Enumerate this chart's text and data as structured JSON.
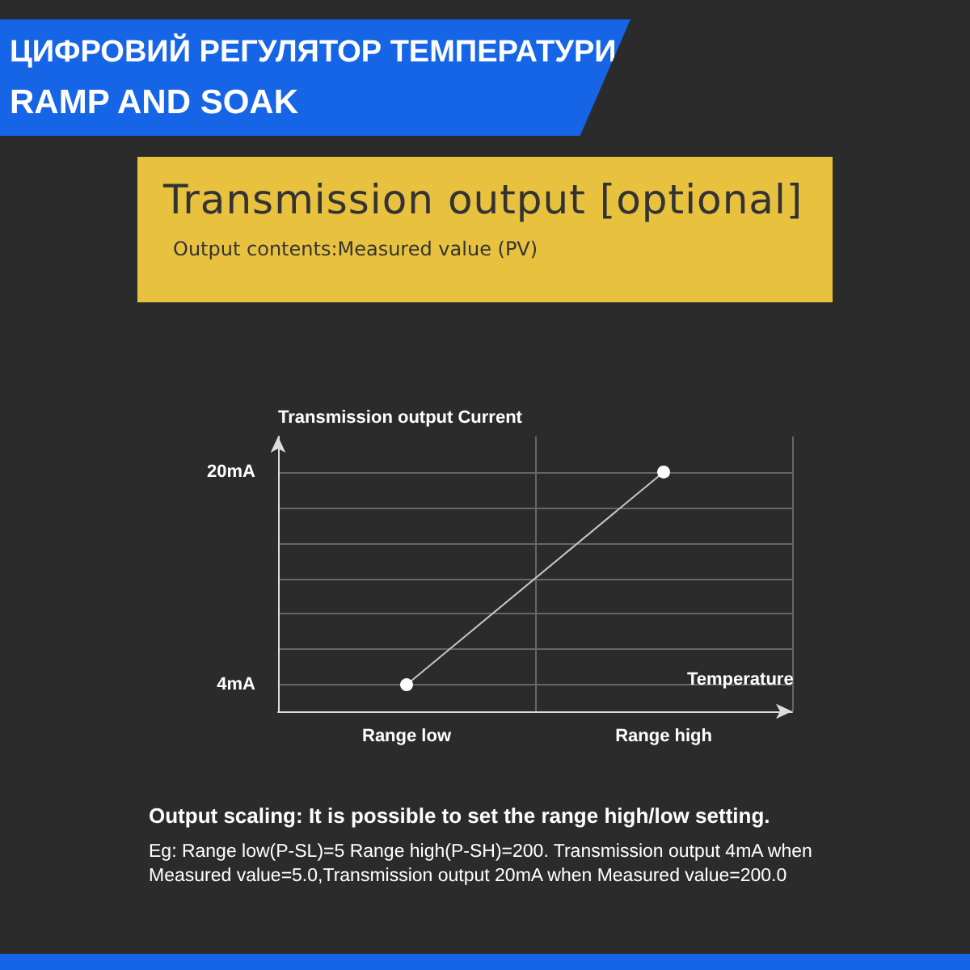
{
  "chart_data": {
    "type": "line",
    "title": "Transmission output [optional]",
    "subtitle": "Output contents:Measured value (PV)",
    "annotations": [
      "ЦИФРОВИЙ РЕГУЛЯТОР ТЕМПЕРАТУРИ",
      "RAMP AND SOAK",
      "Output scaling:  It is possible to set the range high/low setting.",
      "Eg: Range low(P-SL)=5 Range high(P-SH)=200. Transmission output 4mA when Measured value=5.0,Transmission output 20mA when Measured value=200.0"
    ],
    "xlabel": "Temperature",
    "ylabel": "Transmission output Current",
    "categories": [
      "Range low",
      "Range high"
    ],
    "series": [
      {
        "color": "#c8c8c8",
        "values": [
          4,
          20
        ]
      }
    ],
    "ylim": [
      2,
      22.67
    ],
    "yticks": [
      {
        "value": 4,
        "label": "4mA"
      },
      {
        "value": 6.667,
        "label": null
      },
      {
        "value": 9.333,
        "label": null
      },
      {
        "value": 12,
        "label": null
      },
      {
        "value": 14.667,
        "label": null
      },
      {
        "value": 17.333,
        "label": null
      },
      {
        "value": 20,
        "label": "20mA"
      }
    ],
    "grid": true,
    "marker": "circle",
    "line_style": "solid"
  }
}
